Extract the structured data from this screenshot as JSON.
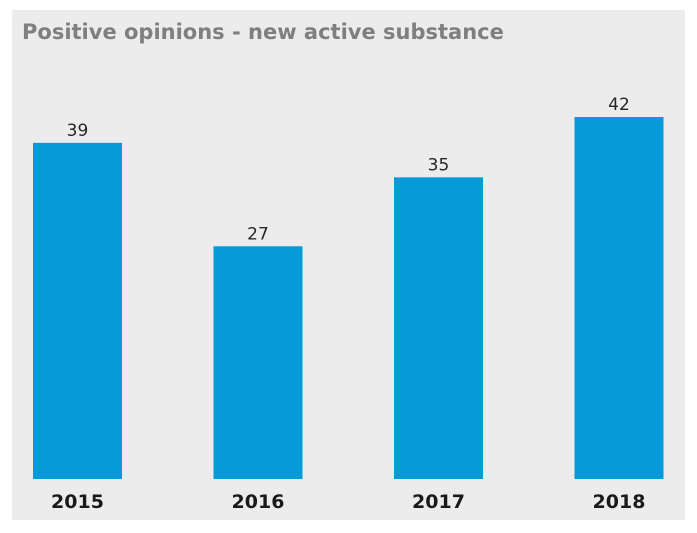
{
  "chart_data": {
    "type": "bar",
    "title": "Positive opinions - new active substance",
    "xlabel": "",
    "ylabel": "",
    "categories": [
      "2015",
      "2016",
      "2017",
      "2018"
    ],
    "values": [
      39,
      27,
      35,
      42
    ],
    "ylim": [
      0,
      42
    ],
    "grid": false,
    "legend": "none",
    "colors": {
      "bar": "#069ad9",
      "background": "#ececec",
      "title": "#7f7f7f"
    }
  }
}
